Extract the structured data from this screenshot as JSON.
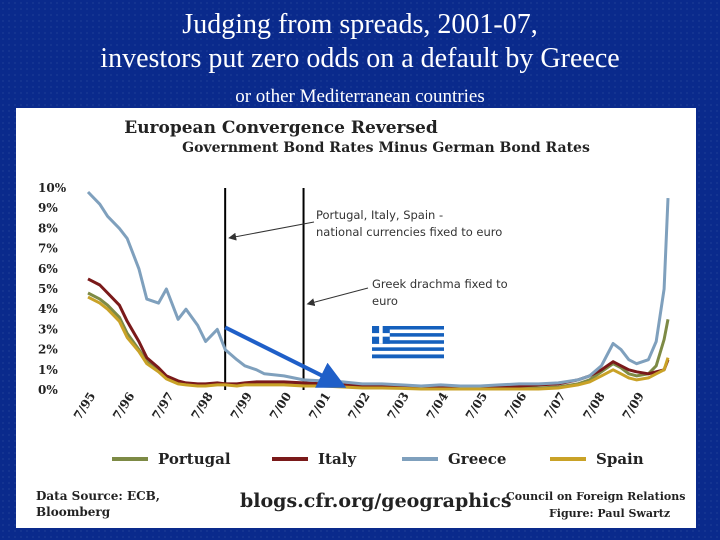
{
  "slide": {
    "title_line1": "Judging from spreads, 2001-07,",
    "title_line2": "investors put zero odds on a default by Greece",
    "subtitle": "or other Mediterranean countries"
  },
  "footer": {
    "source": "Data Source: ECB,\nBloomberg",
    "url": "blogs.cfr.org/geographics",
    "org": "Council on Foreign Relations",
    "credit": "Figure: Paul Swartz"
  },
  "colors": {
    "Portugal": "#7d8a45",
    "Italy": "#7a1a1a",
    "Greece": "#7fa0bd",
    "Spain": "#c9a227",
    "event_lines": "#000000",
    "trend_arrow": "#1f5fc8"
  },
  "chart_data": {
    "type": "line",
    "title": "European Convergence Reversed",
    "subtitle": "Government Bond Rates Minus German Bond Rates",
    "xlabel": "",
    "ylabel": "",
    "x_tick_labels": [
      "7/95",
      "7/96",
      "7/97",
      "7/98",
      "7/99",
      "7/00",
      "7/01",
      "7/02",
      "7/03",
      "7/04",
      "7/05",
      "7/06",
      "7/07",
      "7/08",
      "7/09"
    ],
    "y_tick_labels": [
      "0%",
      "1%",
      "2%",
      "3%",
      "4%",
      "5%",
      "6%",
      "7%",
      "8%",
      "9%",
      "10%"
    ],
    "ylim": [
      0,
      10
    ],
    "xlim": [
      1995.5,
      2010.3
    ],
    "grid": false,
    "legend_position": "bottom",
    "x": [
      1995.5,
      1995.8,
      1996.0,
      1996.3,
      1996.5,
      1996.8,
      1997.0,
      1997.3,
      1997.5,
      1997.8,
      1998.0,
      1998.3,
      1998.5,
      1998.8,
      1999.0,
      1999.3,
      1999.5,
      1999.8,
      2000.0,
      2000.5,
      2001.0,
      2001.5,
      2002.0,
      2002.5,
      2003.0,
      2003.5,
      2004.0,
      2004.5,
      2005.0,
      2005.5,
      2006.0,
      2006.5,
      2007.0,
      2007.5,
      2008.0,
      2008.3,
      2008.6,
      2008.9,
      2009.1,
      2009.3,
      2009.5,
      2009.8,
      2010.0,
      2010.2,
      2010.3
    ],
    "series": [
      {
        "name": "Portugal",
        "values": [
          4.8,
          4.5,
          4.2,
          3.6,
          2.8,
          2.0,
          1.4,
          1.0,
          0.6,
          0.35,
          0.3,
          0.25,
          0.25,
          0.3,
          0.3,
          0.25,
          0.3,
          0.3,
          0.3,
          0.3,
          0.3,
          0.25,
          0.2,
          0.15,
          0.15,
          0.12,
          0.1,
          0.1,
          0.1,
          0.1,
          0.1,
          0.1,
          0.1,
          0.15,
          0.3,
          0.5,
          0.9,
          1.3,
          1.1,
          0.8,
          0.7,
          0.8,
          1.2,
          2.5,
          3.5
        ]
      },
      {
        "name": "Italy",
        "values": [
          5.5,
          5.2,
          4.8,
          4.2,
          3.4,
          2.4,
          1.6,
          1.1,
          0.7,
          0.45,
          0.35,
          0.3,
          0.3,
          0.35,
          0.3,
          0.3,
          0.35,
          0.4,
          0.4,
          0.4,
          0.35,
          0.3,
          0.25,
          0.2,
          0.2,
          0.15,
          0.15,
          0.15,
          0.15,
          0.15,
          0.15,
          0.2,
          0.25,
          0.3,
          0.5,
          0.7,
          1.0,
          1.4,
          1.2,
          1.0,
          0.9,
          0.8,
          0.9,
          1.0,
          1.5
        ]
      },
      {
        "name": "Greece",
        "values": [
          9.8,
          9.2,
          8.6,
          8.0,
          7.5,
          6.0,
          4.5,
          4.3,
          5.0,
          3.5,
          4.0,
          3.2,
          2.4,
          3.0,
          2.0,
          1.5,
          1.2,
          1.0,
          0.8,
          0.7,
          0.5,
          0.45,
          0.4,
          0.3,
          0.3,
          0.25,
          0.2,
          0.25,
          0.2,
          0.2,
          0.25,
          0.3,
          0.3,
          0.35,
          0.5,
          0.7,
          1.2,
          2.3,
          2.0,
          1.5,
          1.3,
          1.5,
          2.4,
          5.0,
          9.5
        ]
      },
      {
        "name": "Spain",
        "values": [
          4.6,
          4.3,
          4.0,
          3.4,
          2.6,
          1.9,
          1.3,
          0.9,
          0.55,
          0.3,
          0.25,
          0.2,
          0.2,
          0.25,
          0.25,
          0.2,
          0.25,
          0.25,
          0.25,
          0.25,
          0.2,
          0.2,
          0.15,
          0.1,
          0.1,
          0.08,
          0.05,
          0.05,
          0.05,
          0.05,
          0.05,
          0.05,
          0.05,
          0.1,
          0.25,
          0.4,
          0.7,
          1.0,
          0.8,
          0.6,
          0.5,
          0.6,
          0.8,
          1.0,
          1.6
        ]
      }
    ],
    "annotations": [
      {
        "x": 1999.0,
        "text_lines": [
          "Portugal, Italy, Spain -",
          "national currencies fixed to euro"
        ]
      },
      {
        "x": 2001.0,
        "text_lines": [
          "Greek drachma fixed to",
          "euro"
        ]
      }
    ],
    "trend_arrow": {
      "from": [
        1999.0,
        3.1
      ],
      "to": [
        2002.0,
        0.2
      ]
    }
  }
}
